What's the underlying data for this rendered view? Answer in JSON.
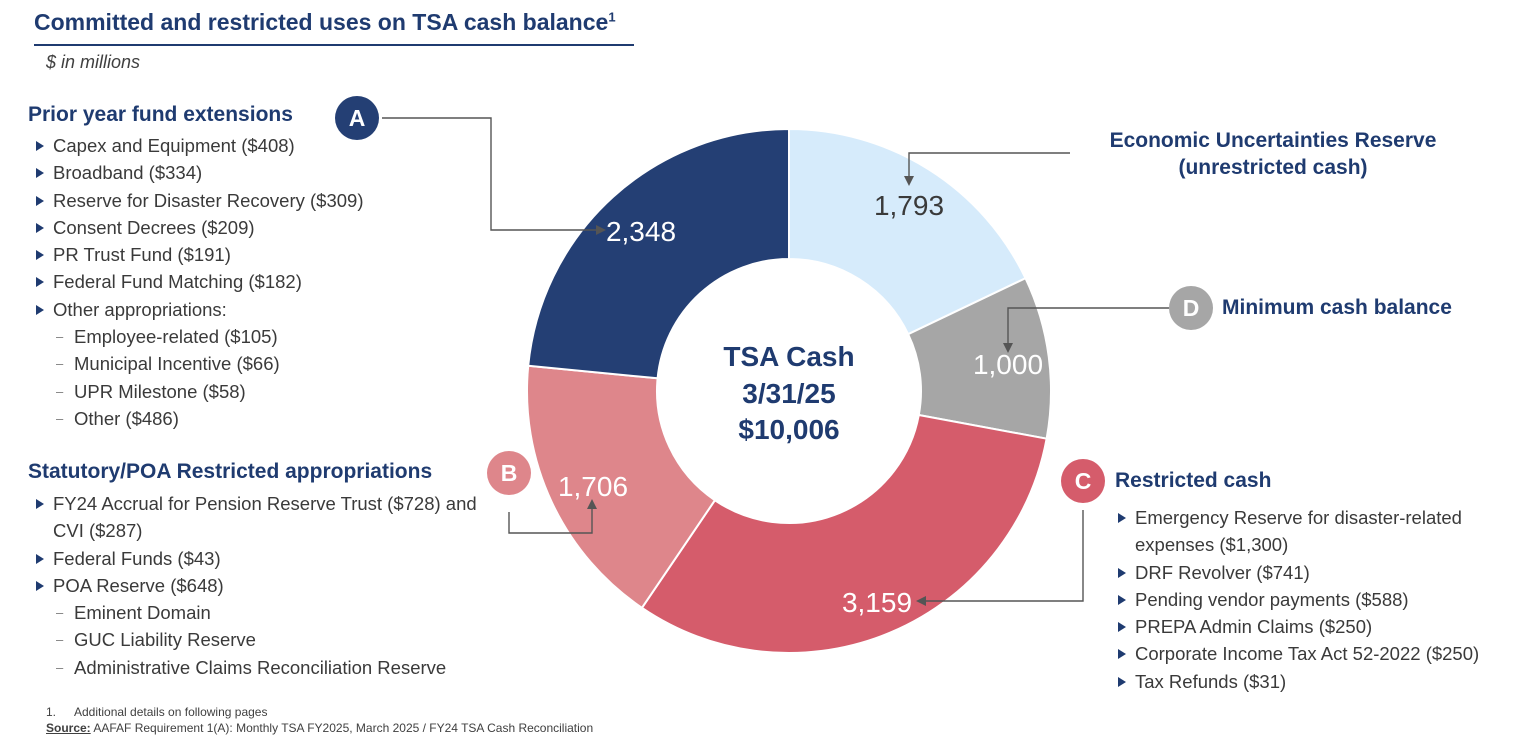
{
  "header": {
    "title": "Committed and restricted uses on TSA cash balance",
    "title_sup": "1",
    "subtitle": "$ in millions"
  },
  "sections": {
    "a": {
      "badge": "A",
      "heading": "Prior year fund extensions",
      "items": [
        "Capex and Equipment ($408)",
        "Broadband ($334)",
        "Reserve for Disaster Recovery ($309)",
        "Consent Decrees ($209)",
        "PR Trust Fund ($191)",
        "Federal Fund Matching ($182)",
        "Other appropriations:"
      ],
      "subitems": [
        "Employee-related ($105)",
        "Municipal Incentive ($66)",
        "UPR Milestone ($58)",
        "Other ($486)"
      ]
    },
    "b": {
      "badge": "B",
      "heading": "Statutory/POA Restricted appropriations",
      "items": [
        "FY24 Accrual for Pension Reserve Trust ($728) and CVI ($287)",
        "Federal Funds ($43)",
        "POA Reserve ($648)"
      ],
      "subitems": [
        "Eminent Domain",
        "GUC Liability Reserve",
        "Administrative Claims Reconciliation Reserve"
      ]
    },
    "c": {
      "badge": "C",
      "heading": "Restricted cash",
      "items": [
        "Emergency Reserve for disaster-related expenses ($1,300)",
        "DRF Revolver ($741)",
        "Pending vendor payments ($588)",
        "PREPA Admin Claims ($250)",
        "Corporate Income Tax Act 52-2022 ($250)",
        "Tax Refunds ($31)"
      ]
    },
    "d": {
      "badge": "D",
      "heading": "Minimum cash balance"
    },
    "e": {
      "heading_line1": "Economic Uncertainties Reserve",
      "heading_line2": "(unrestricted cash)"
    }
  },
  "chart_data": {
    "type": "pie",
    "donut": true,
    "center_text": [
      "TSA Cash",
      "3/31/25",
      "$10,006"
    ],
    "total": 10006,
    "categories": [
      "Economic Uncertainties Reserve (unrestricted cash)",
      "Minimum cash balance",
      "Restricted cash",
      "Statutory/POA Restricted appropriations",
      "Prior year fund extensions"
    ],
    "values": [
      1793,
      1000,
      3159,
      1706,
      2348
    ],
    "labels": [
      "1,793",
      "1,000",
      "3,159",
      "1,706",
      "2,348"
    ],
    "colors": [
      "#d6ebfb",
      "#a6a6a6",
      "#d55c6b",
      "#de868b",
      "#243f74"
    ],
    "label_colors": [
      "#3a3a3a",
      "#ffffff",
      "#ffffff",
      "#ffffff",
      "#ffffff"
    ],
    "start": "top, clockwise"
  },
  "colors": {
    "navy": "#1f3b70",
    "badge_a": "#243f74",
    "badge_b": "#de868b",
    "badge_c": "#d55c6b",
    "badge_d": "#a6a6a6"
  },
  "footer": {
    "footnote_num": "1.",
    "footnote_text": "Additional details on following pages",
    "source_label": "Source:",
    "source_text": " AAFAF Requirement 1(A): Monthly TSA FY2025, March 2025 /  FY24 TSA Cash Reconciliation"
  }
}
